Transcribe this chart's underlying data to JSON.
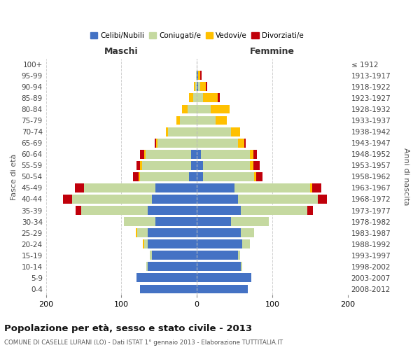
{
  "age_groups": [
    "100+",
    "95-99",
    "90-94",
    "85-89",
    "80-84",
    "75-79",
    "70-74",
    "65-69",
    "60-64",
    "55-59",
    "50-54",
    "45-49",
    "40-44",
    "35-39",
    "30-34",
    "25-29",
    "20-24",
    "15-19",
    "10-14",
    "5-9",
    "0-4"
  ],
  "birth_years": [
    "≤ 1912",
    "1913-1917",
    "1918-1922",
    "1923-1927",
    "1928-1932",
    "1933-1937",
    "1938-1942",
    "1943-1947",
    "1948-1952",
    "1953-1957",
    "1958-1962",
    "1963-1967",
    "1968-1972",
    "1973-1977",
    "1978-1982",
    "1983-1987",
    "1988-1992",
    "1993-1997",
    "1998-2002",
    "2003-2007",
    "2008-2012"
  ],
  "maschi": {
    "celibi": [
      0,
      0,
      0,
      0,
      0,
      0,
      0,
      0,
      8,
      8,
      10,
      55,
      60,
      65,
      55,
      65,
      65,
      60,
      65,
      80,
      75
    ],
    "coniugati": [
      0,
      1,
      2,
      5,
      12,
      22,
      38,
      52,
      60,
      65,
      65,
      95,
      105,
      88,
      42,
      14,
      5,
      2,
      2,
      0,
      0
    ],
    "vedovi": [
      0,
      0,
      2,
      5,
      8,
      5,
      3,
      2,
      2,
      2,
      2,
      0,
      0,
      0,
      0,
      2,
      2,
      0,
      0,
      0,
      0
    ],
    "divorziati": [
      0,
      0,
      0,
      0,
      0,
      0,
      0,
      2,
      5,
      5,
      8,
      12,
      12,
      8,
      0,
      0,
      0,
      0,
      0,
      0,
      0
    ]
  },
  "femmine": {
    "nubili": [
      0,
      2,
      2,
      0,
      0,
      0,
      0,
      0,
      5,
      8,
      8,
      50,
      55,
      58,
      45,
      58,
      60,
      55,
      58,
      72,
      68
    ],
    "coniugate": [
      0,
      0,
      2,
      8,
      18,
      25,
      45,
      55,
      65,
      62,
      68,
      100,
      105,
      88,
      50,
      18,
      10,
      2,
      2,
      0,
      0
    ],
    "vedove": [
      0,
      2,
      8,
      20,
      25,
      15,
      12,
      8,
      5,
      5,
      3,
      3,
      0,
      0,
      0,
      0,
      0,
      0,
      0,
      0,
      0
    ],
    "divorziate": [
      0,
      2,
      2,
      2,
      0,
      0,
      0,
      2,
      5,
      8,
      8,
      12,
      12,
      8,
      0,
      0,
      0,
      0,
      0,
      0,
      0
    ]
  },
  "colors": {
    "celibi_nubili": "#4472c4",
    "coniugati": "#c5d9a0",
    "vedovi": "#ffc000",
    "divorziati": "#c0000b"
  },
  "xlim": 200,
  "title": "Popolazione per età, sesso e stato civile - 2013",
  "subtitle": "COMUNE DI CASELLE LURANI (LO) - Dati ISTAT 1° gennaio 2013 - Elaborazione TUTTITALIA.IT",
  "ylabel_left": "Fasce di età",
  "ylabel_right": "Anni di nascita",
  "legend_labels": [
    "Celibi/Nubili",
    "Coniugati/e",
    "Vedovi/e",
    "Divorziati/e"
  ],
  "maschi_label": "Maschi",
  "femmine_label": "Femmine",
  "bg_color": "#ffffff",
  "grid_color": "#cccccc",
  "bar_height": 0.8
}
